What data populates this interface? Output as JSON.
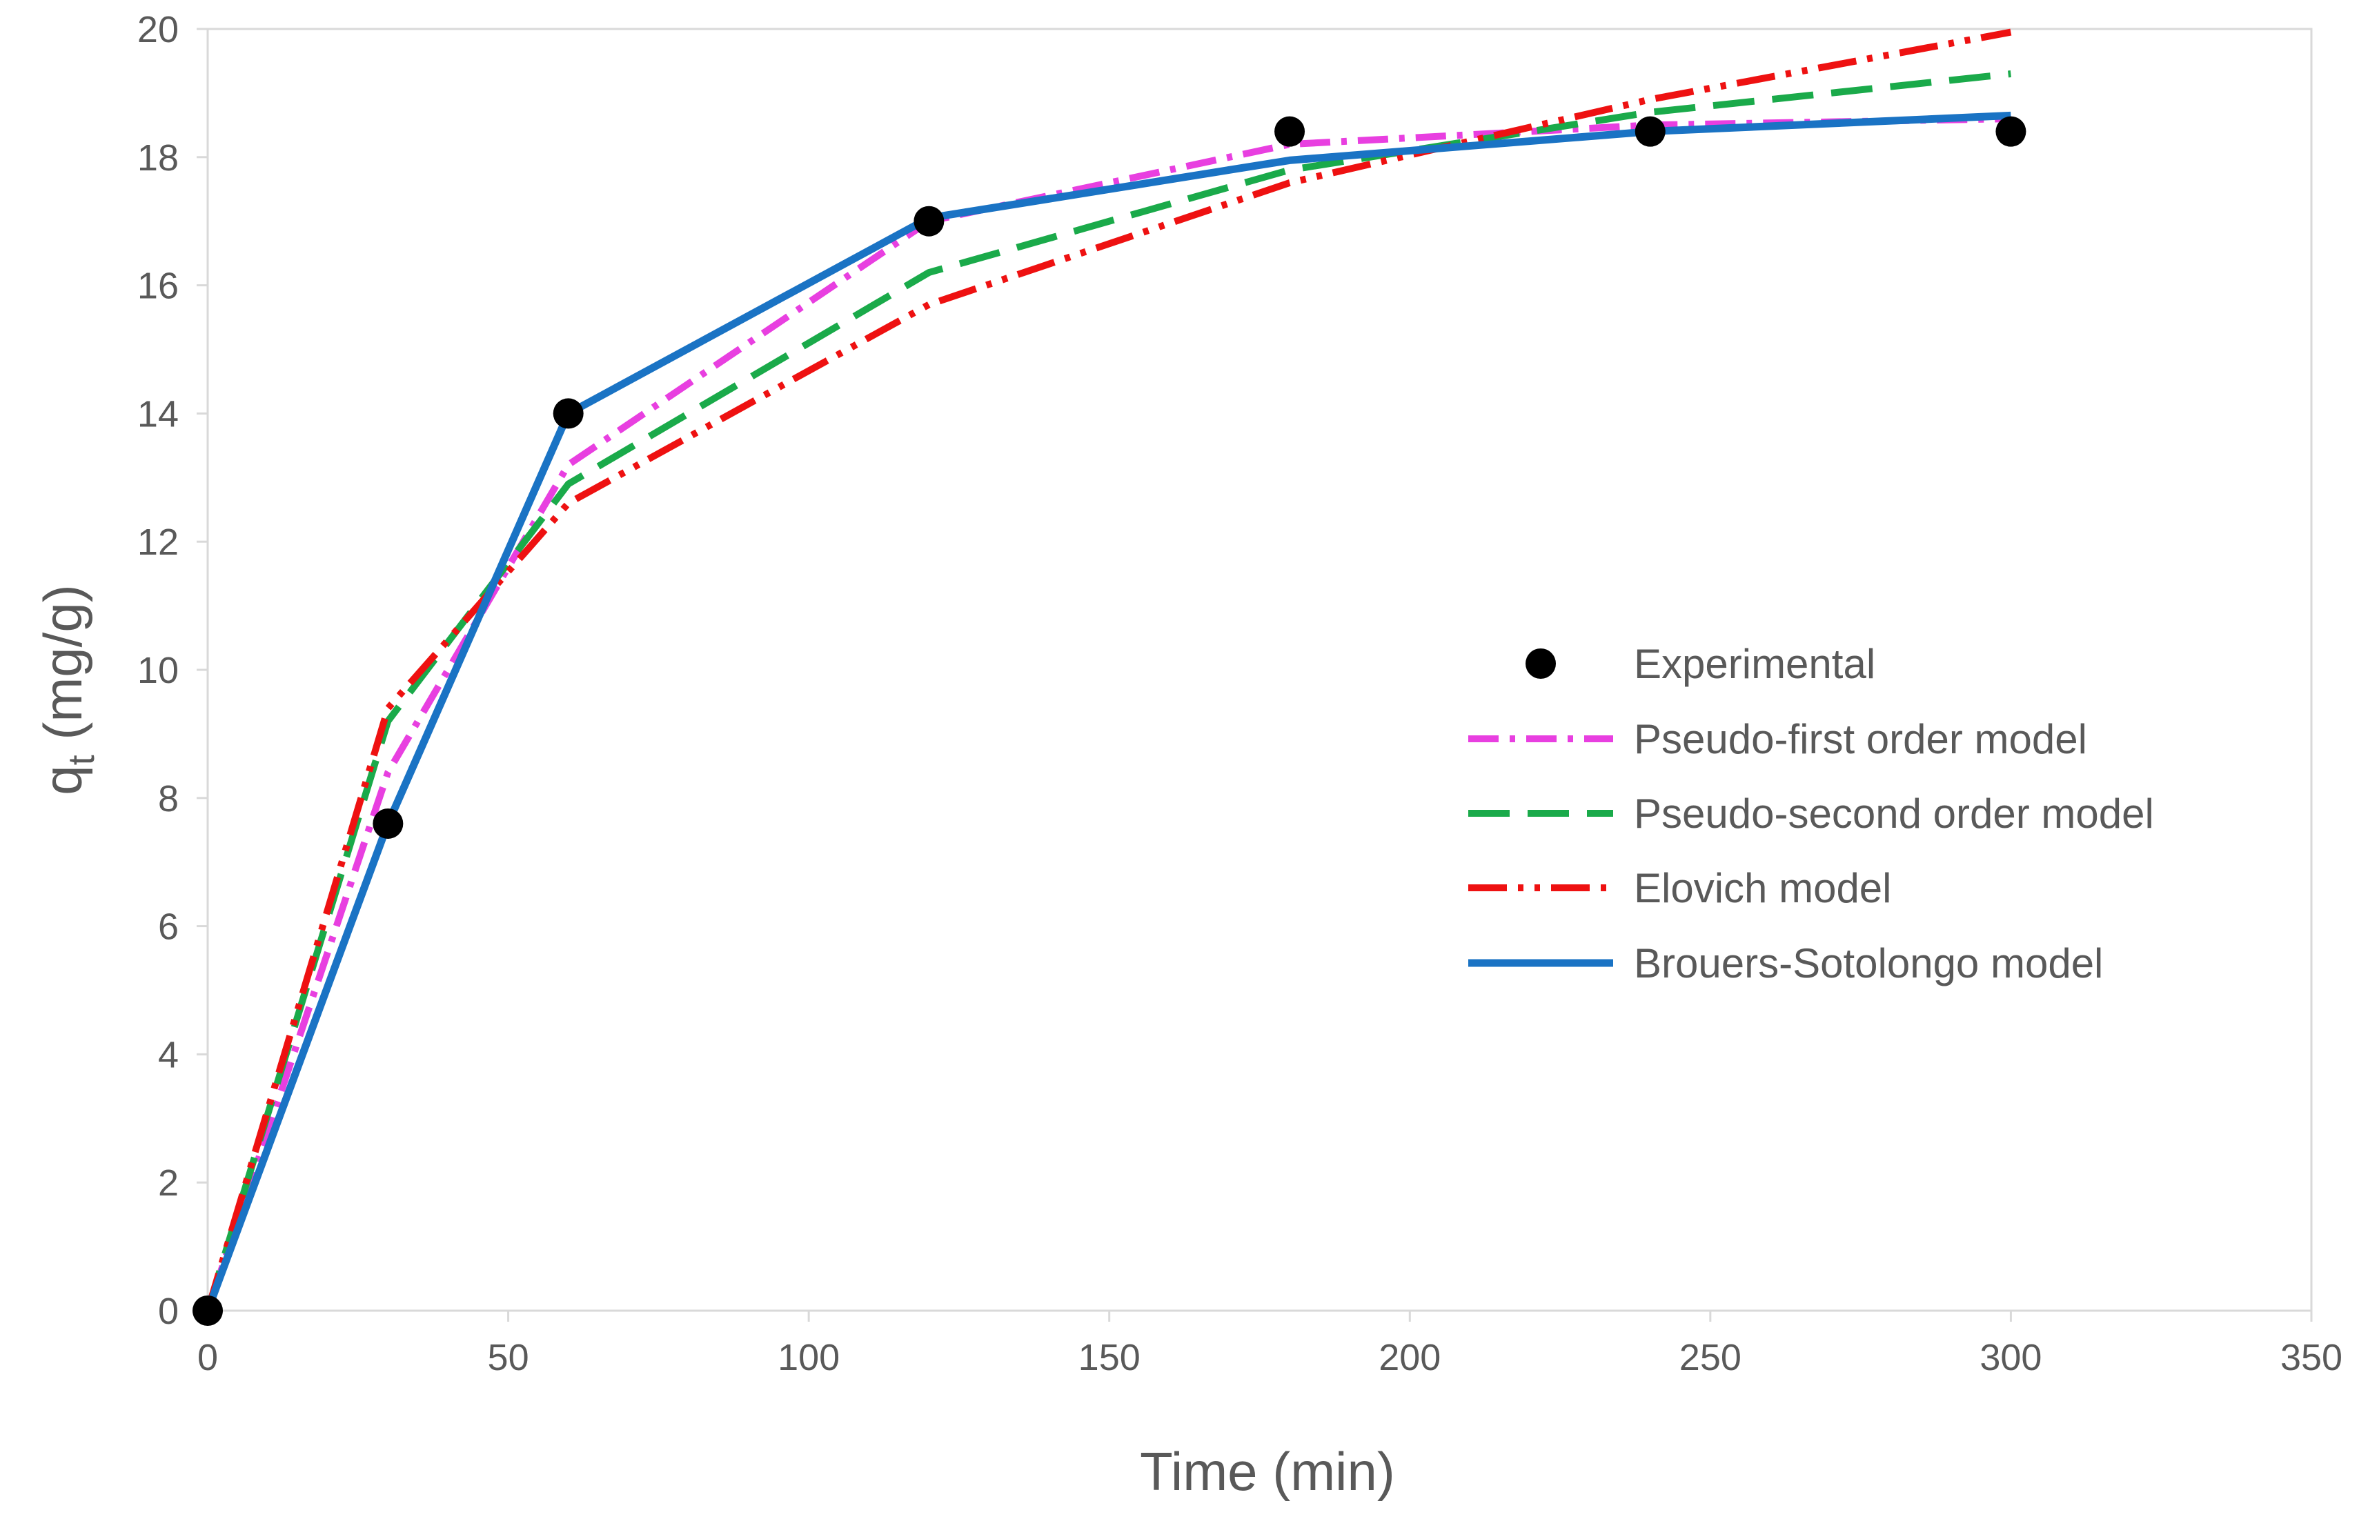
{
  "chart_data": {
    "type": "line",
    "title": "",
    "xlabel": "Time (min)",
    "ylabel": "q",
    "ylabel_subscript": "t",
    "ylabel_unit": " (mg/g)",
    "xlim": [
      0,
      350
    ],
    "ylim": [
      0,
      20
    ],
    "x_ticks": [
      0,
      50,
      100,
      150,
      200,
      250,
      300,
      350
    ],
    "y_ticks": [
      0,
      2,
      4,
      6,
      8,
      10,
      12,
      14,
      16,
      18,
      20
    ],
    "grid": false,
    "legend_position": "center-right",
    "experimental": {
      "name": "Experimental",
      "x": [
        0,
        30,
        60,
        120,
        180,
        240,
        300
      ],
      "y": [
        0,
        7.6,
        14.0,
        17.0,
        18.4,
        18.4,
        18.4
      ]
    },
    "series": [
      {
        "name": "Pseudo-first order model",
        "color": "#e83fe0",
        "style": "dashdot",
        "x": [
          0,
          30,
          60,
          120,
          180,
          240,
          300
        ],
        "y": [
          0,
          8.4,
          13.2,
          17.0,
          18.2,
          18.5,
          18.6
        ]
      },
      {
        "name": "Pseudo-second order model",
        "color": "#1aaa4a",
        "style": "dash",
        "x": [
          0,
          30,
          60,
          120,
          180,
          240,
          300
        ],
        "y": [
          0,
          9.2,
          12.9,
          16.2,
          17.8,
          18.7,
          19.3
        ]
      },
      {
        "name": "Elovich model",
        "color": "#ee1111",
        "style": "dashdotdot",
        "x": [
          0,
          30,
          60,
          120,
          180,
          240,
          300
        ],
        "y": [
          0,
          9.4,
          12.6,
          15.7,
          17.6,
          18.9,
          19.95
        ]
      },
      {
        "name": "Brouers-Sotolongo model",
        "color": "#1a73c4",
        "style": "solid",
        "x": [
          0,
          30,
          60,
          120,
          180,
          240,
          300
        ],
        "y": [
          0,
          7.6,
          14.0,
          17.05,
          17.95,
          18.4,
          18.65
        ]
      }
    ]
  }
}
